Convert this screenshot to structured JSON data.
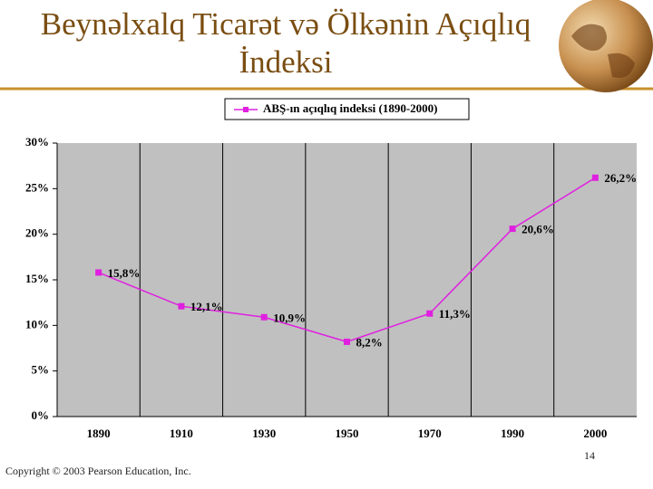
{
  "chart_data": {
    "type": "line",
    "title": "Beynəlxalq Ticarət və Ölkənin Açıqlıq İndeksi",
    "categories": [
      "1890",
      "1910",
      "1930",
      "1950",
      "1970",
      "1990",
      "2000"
    ],
    "series": [
      {
        "name": "ABŞ-ın açıqlıq indeksi (1890-2000)",
        "color": "#e020e0",
        "values": [
          15.8,
          12.1,
          10.9,
          8.2,
          11.3,
          20.6,
          26.2
        ],
        "value_labels": [
          "15,8%",
          "12,1%",
          "10,9%",
          "8,2%",
          "11,3%",
          "20,6%",
          "26,2%"
        ]
      }
    ],
    "ylim": [
      0,
      30
    ],
    "yticks": [
      {
        "value": 0,
        "label": "0%"
      },
      {
        "value": 5,
        "label": "5%"
      },
      {
        "value": 10,
        "label": "10%"
      },
      {
        "value": 15,
        "label": "15%"
      },
      {
        "value": 20,
        "label": "20%"
      },
      {
        "value": 25,
        "label": "25%"
      },
      {
        "value": 30,
        "label": "30%"
      }
    ],
    "legend": "top"
  },
  "footer": {
    "page_number": "14",
    "copyright": "Copyright © 2003 Pearson Education, Inc."
  }
}
